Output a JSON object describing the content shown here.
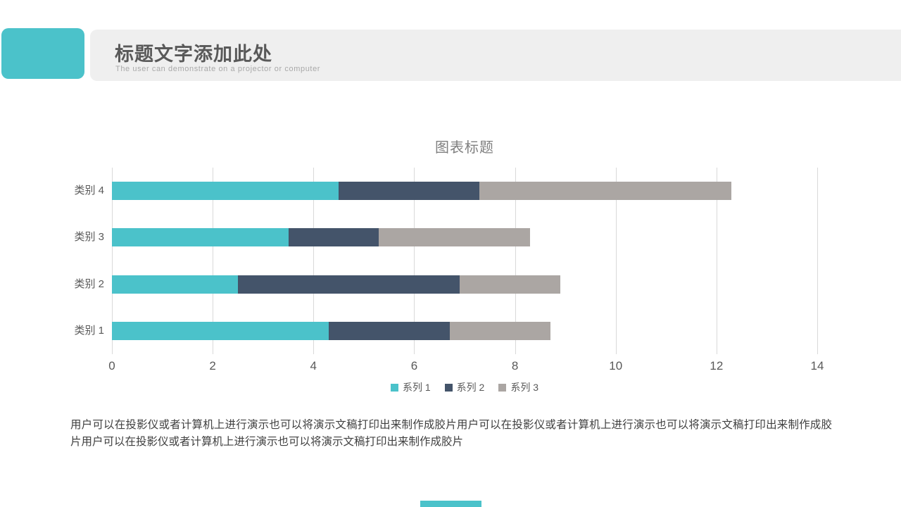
{
  "header": {
    "title": "标题文字添加此处",
    "subtitle": "The user can demonstrate on a projector or computer",
    "accent_color": "#4bc2ca",
    "band_color": "#efefef"
  },
  "chart_data": {
    "type": "bar",
    "orientation": "horizontal",
    "stacked": true,
    "title": "图表标题",
    "categories": [
      "类别 4",
      "类别 3",
      "类别 2",
      "类别 1"
    ],
    "series": [
      {
        "name": "系列 1",
        "color": "#4bc2ca",
        "values": [
          4.5,
          3.5,
          2.5,
          4.3
        ]
      },
      {
        "name": "系列 2",
        "color": "#44546a",
        "values": [
          2.8,
          1.8,
          4.4,
          2.4
        ]
      },
      {
        "name": "系列 3",
        "color": "#aba6a3",
        "values": [
          5,
          3,
          2,
          2
        ]
      }
    ],
    "xlim": [
      0,
      14
    ],
    "xticks": [
      0,
      2,
      4,
      6,
      8,
      10,
      12,
      14
    ],
    "grid": true,
    "gridline_color": "#d9d9d9",
    "axis_text_color": "#595959",
    "legend_position": "bottom"
  },
  "body": {
    "paragraph": "用户可以在投影仪或者计算机上进行演示也可以将演示文稿打印出来制作成胶片用户可以在投影仪或者计算机上进行演示也可以将演示文稿打印出来制作成胶片用户可以在投影仪或者计算机上进行演示也可以将演示文稿打印出来制作成胶片"
  },
  "footer": {
    "accent_color": "#4bc2ca"
  }
}
